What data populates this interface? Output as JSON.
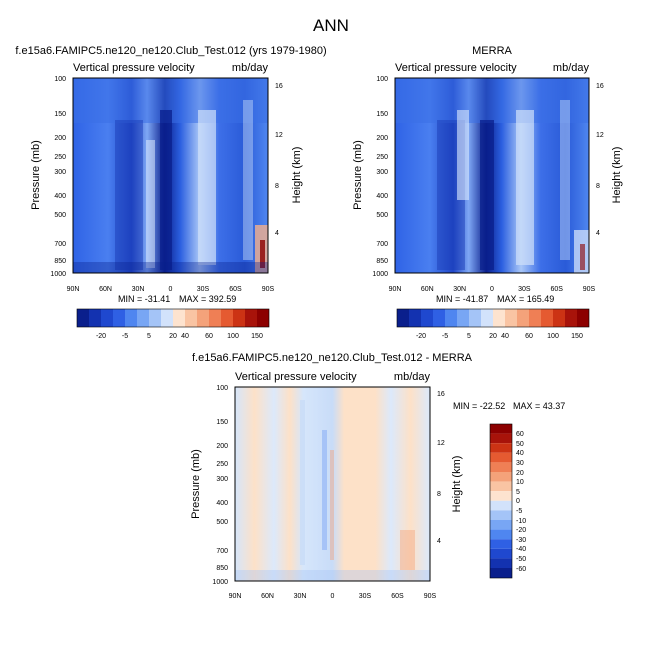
{
  "page_title": "ANN",
  "colors": {
    "deep_blue": "#0a1f8c",
    "mid_blue": "#2b5fe0",
    "light_blue": "#9cc0f5",
    "pale_blue": "#dce9fb",
    "pale_orange": "#fde1c8",
    "orange": "#f08a4b",
    "dark_red": "#8c0000"
  },
  "chart_data": [
    {
      "type": "heatmap",
      "title": "f.e15a6.FAMIPC5.ne120_ne120.Club_Test.012 (yrs 1979-1980)",
      "variable_label": "Vertical pressure velocity",
      "units_label": "mb/day",
      "ylabel": "Pressure (mb)",
      "ylabel_right": "Height (km)",
      "x_ticks": [
        "90N",
        "60N",
        "30N",
        "0",
        "30S",
        "60S",
        "90S"
      ],
      "y_ticks": [
        "100",
        "150",
        "200",
        "250",
        "300",
        "400",
        "500",
        "700",
        "850",
        "1000"
      ],
      "y_ticks_right": [
        "16",
        "12",
        "8",
        "4"
      ],
      "y_scale": "log",
      "ylim": [
        1000,
        100
      ],
      "xlim": [
        "90N",
        "90S"
      ],
      "min_label": "MIN = -31.41",
      "max_label": "MAX = 392.59",
      "colorbar_ticks": [
        "-20",
        "-5",
        "5",
        "20",
        "40",
        "60",
        "100",
        "150"
      ],
      "colorbar_orientation": "horizontal"
    },
    {
      "type": "heatmap",
      "title": "MERRA",
      "variable_label": "Vertical pressure velocity",
      "units_label": "mb/day",
      "ylabel": "Pressure (mb)",
      "ylabel_right": "Height (km)",
      "x_ticks": [
        "90N",
        "60N",
        "30N",
        "0",
        "30S",
        "60S",
        "90S"
      ],
      "y_ticks": [
        "100",
        "150",
        "200",
        "250",
        "300",
        "400",
        "500",
        "700",
        "850",
        "1000"
      ],
      "y_ticks_right": [
        "16",
        "12",
        "8",
        "4"
      ],
      "y_scale": "log",
      "ylim": [
        1000,
        100
      ],
      "xlim": [
        "90N",
        "90S"
      ],
      "min_label": "MIN = -41.87",
      "max_label": "MAX = 165.49",
      "colorbar_ticks": [
        "-20",
        "-5",
        "5",
        "20",
        "40",
        "60",
        "100",
        "150"
      ],
      "colorbar_orientation": "horizontal"
    },
    {
      "type": "heatmap",
      "title": "f.e15a6.FAMIPC5.ne120_ne120.Club_Test.012 - MERRA",
      "variable_label": "Vertical pressure velocity",
      "units_label": "mb/day",
      "ylabel": "Pressure (mb)",
      "ylabel_right": "Height (km)",
      "x_ticks": [
        "90N",
        "60N",
        "30N",
        "0",
        "30S",
        "60S",
        "90S"
      ],
      "y_ticks": [
        "100",
        "150",
        "200",
        "250",
        "300",
        "400",
        "500",
        "700",
        "850",
        "1000"
      ],
      "y_ticks_right": [
        "16",
        "12",
        "8",
        "4"
      ],
      "y_scale": "log",
      "ylim": [
        1000,
        100
      ],
      "xlim": [
        "90N",
        "90S"
      ],
      "min_label": "MIN = -22.52",
      "max_label": "MAX =  43.37",
      "colorbar_ticks": [
        "60",
        "50",
        "40",
        "30",
        "20",
        "10",
        "5",
        "0",
        "-5",
        "-10",
        "-20",
        "-30",
        "-40",
        "-50",
        "-60"
      ],
      "colorbar_orientation": "vertical"
    }
  ]
}
